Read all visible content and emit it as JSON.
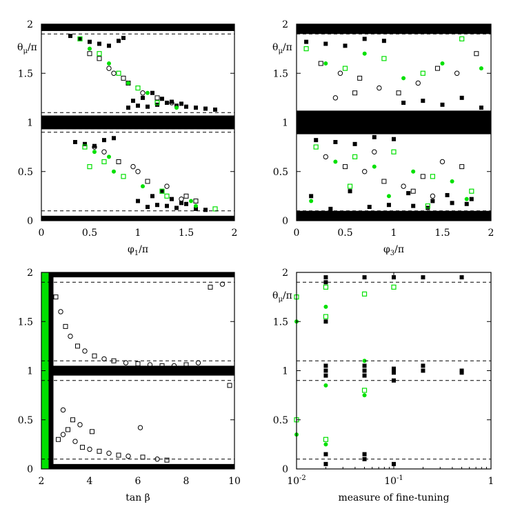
{
  "colors": {
    "black": "#000000",
    "green": "#00e000",
    "frame": "#000000"
  },
  "chart_data": [
    {
      "type": "scatter",
      "panel": "top-left",
      "ylabel": "θμ/π",
      "xlabel": "φ1/π",
      "xlim": [
        0,
        2
      ],
      "ylim": [
        0,
        2
      ],
      "xscale": "linear",
      "xticks": [
        0,
        0.5,
        1,
        1.5,
        2
      ],
      "xtick_labels": [
        "0",
        "0.5",
        "1",
        "1.5",
        "2"
      ],
      "yticks": [
        0,
        0.5,
        1,
        1.5,
        2
      ],
      "ytick_labels": [
        "0",
        "0.5",
        "1",
        "1.5",
        "2"
      ],
      "reference_lines_y": [
        0.1,
        0.9,
        1.1,
        1.9
      ],
      "bands": [
        {
          "x": [
            0,
            2
          ],
          "y": [
            1.93,
            2.0
          ],
          "color": "black"
        },
        {
          "x": [
            0,
            2
          ],
          "y": [
            0.93,
            1.07
          ],
          "color": "black"
        },
        {
          "x": [
            0,
            2
          ],
          "y": [
            0.0,
            0.05
          ],
          "color": "black"
        }
      ],
      "series": [
        {
          "marker": "filled-black",
          "x": [
            0.9,
            1.0,
            1.1,
            1.2,
            1.3,
            1.4,
            1.5,
            1.6,
            1.7,
            1.8,
            0.95,
            1.05,
            1.15,
            1.25,
            1.35,
            1.45,
            0.3,
            0.4,
            0.5,
            0.6,
            0.7,
            0.8,
            0.85,
            0.35,
            0.45,
            0.55,
            0.65,
            0.75,
            1.1,
            1.2,
            1.3,
            1.4,
            1.5,
            1.6,
            1.7,
            1.0,
            1.15,
            1.25,
            1.35,
            1.45
          ],
          "y": [
            1.15,
            1.17,
            1.16,
            1.18,
            1.2,
            1.17,
            1.16,
            1.15,
            1.14,
            1.13,
            1.22,
            1.25,
            1.3,
            1.24,
            1.21,
            1.19,
            1.88,
            1.85,
            1.82,
            1.8,
            1.78,
            1.83,
            1.86,
            0.8,
            0.78,
            0.76,
            0.82,
            0.84,
            0.14,
            0.16,
            0.15,
            0.13,
            0.17,
            0.12,
            0.11,
            0.2,
            0.25,
            0.3,
            0.22,
            0.18
          ]
        },
        {
          "marker": "open-black",
          "x": [
            0.6,
            0.75,
            0.9,
            1.05,
            1.2,
            1.35,
            0.5,
            0.7,
            0.85,
            1.0,
            1.1,
            1.3,
            1.5,
            0.65,
            0.8,
            0.95,
            1.25,
            1.45,
            1.6,
            0.55
          ],
          "y": [
            1.65,
            1.5,
            1.4,
            1.3,
            1.25,
            1.2,
            1.7,
            1.55,
            1.45,
            0.5,
            0.4,
            0.35,
            0.25,
            0.7,
            0.6,
            0.55,
            0.3,
            0.22,
            0.2,
            0.75
          ]
        },
        {
          "marker": "green",
          "x": [
            0.4,
            0.5,
            0.6,
            0.7,
            0.8,
            0.9,
            1.0,
            1.1,
            1.2,
            1.4,
            0.45,
            0.55,
            0.65,
            0.75,
            0.85,
            1.05,
            1.25,
            1.55,
            0.5,
            0.7,
            1.3,
            1.6,
            1.8
          ],
          "y": [
            1.85,
            1.75,
            1.7,
            1.6,
            1.5,
            1.4,
            1.35,
            1.3,
            1.2,
            1.15,
            0.75,
            0.7,
            0.6,
            0.5,
            0.45,
            0.35,
            0.3,
            0.2,
            0.55,
            0.65,
            0.25,
            0.15,
            0.12
          ]
        }
      ]
    },
    {
      "type": "scatter",
      "panel": "top-right",
      "ylabel": "θμ/π",
      "xlabel": "φ3/π",
      "xlim": [
        0,
        2
      ],
      "ylim": [
        0,
        2
      ],
      "xscale": "linear",
      "xticks": [
        0,
        0.5,
        1,
        1.5,
        2
      ],
      "xtick_labels": [
        "0",
        "0.5",
        "1",
        "1.5",
        "2"
      ],
      "yticks": [
        0,
        0.5,
        1,
        1.5,
        2
      ],
      "ytick_labels": [
        "0",
        "0.5",
        "1",
        "1.5",
        "2"
      ],
      "reference_lines_y": [
        0.1,
        0.9,
        1.1,
        1.9
      ],
      "bands": [
        {
          "x": [
            0,
            2
          ],
          "y": [
            1.9,
            2.0
          ],
          "color": "black"
        },
        {
          "x": [
            0,
            2
          ],
          "y": [
            0.88,
            1.12
          ],
          "color": "black"
        },
        {
          "x": [
            0,
            2
          ],
          "y": [
            0.0,
            0.1
          ],
          "color": "black"
        }
      ],
      "series": [
        {
          "marker": "filled-black",
          "x": [
            0.1,
            0.3,
            0.5,
            0.7,
            0.9,
            1.1,
            1.3,
            1.5,
            1.7,
            1.9,
            0.2,
            0.4,
            0.6,
            0.8,
            1.0,
            1.2,
            1.4,
            1.6,
            1.8,
            0.15,
            0.35,
            0.55,
            0.75,
            0.95,
            1.15,
            1.35,
            1.55,
            1.75
          ],
          "y": [
            1.82,
            1.8,
            1.78,
            1.85,
            1.83,
            1.2,
            1.22,
            1.18,
            1.25,
            1.15,
            0.82,
            0.8,
            0.78,
            0.85,
            0.83,
            0.15,
            0.2,
            0.18,
            0.22,
            0.25,
            0.12,
            0.3,
            0.14,
            0.16,
            0.28,
            0.13,
            0.26,
            0.17
          ]
        },
        {
          "marker": "open-black",
          "x": [
            0.25,
            0.45,
            0.65,
            0.85,
            1.05,
            1.25,
            1.45,
            1.65,
            1.85,
            0.3,
            0.5,
            0.7,
            0.9,
            1.1,
            1.3,
            1.5,
            1.7,
            0.4,
            0.6,
            0.8,
            1.2,
            1.4
          ],
          "y": [
            1.6,
            1.5,
            1.45,
            1.35,
            1.3,
            1.4,
            1.55,
            1.5,
            1.7,
            0.65,
            0.55,
            0.5,
            0.4,
            0.35,
            0.45,
            0.6,
            0.55,
            1.25,
            1.3,
            0.7,
            0.3,
            0.25
          ]
        },
        {
          "marker": "green",
          "x": [
            0.1,
            0.3,
            0.5,
            0.7,
            0.9,
            1.1,
            1.3,
            1.5,
            1.7,
            1.9,
            0.2,
            0.4,
            0.6,
            0.8,
            1.0,
            1.2,
            1.4,
            1.6,
            1.8,
            0.15,
            0.55,
            0.95,
            1.35,
            1.75
          ],
          "y": [
            1.75,
            1.6,
            1.55,
            1.7,
            1.65,
            1.45,
            1.5,
            1.6,
            1.85,
            1.55,
            0.75,
            0.6,
            0.65,
            0.55,
            0.7,
            0.5,
            0.45,
            0.4,
            0.3,
            0.2,
            0.35,
            0.25,
            0.15,
            0.22
          ]
        }
      ]
    },
    {
      "type": "scatter",
      "panel": "bottom-left",
      "ylabel": "",
      "xlabel": "tan β",
      "xlim": [
        2,
        10
      ],
      "ylim": [
        0,
        2
      ],
      "xscale": "linear",
      "xticks": [
        2,
        4,
        6,
        8,
        10
      ],
      "xtick_labels": [
        "2",
        "4",
        "6",
        "8",
        "10"
      ],
      "yticks": [
        0,
        0.5,
        1,
        1.5,
        2
      ],
      "ytick_labels": [
        "0",
        "0.5",
        "1",
        "1.5",
        "2"
      ],
      "reference_lines_y": [
        0.1,
        0.9,
        1.1,
        1.9
      ],
      "bands": [
        {
          "x": [
            2,
            10
          ],
          "y": [
            1.95,
            2.0
          ],
          "color": "black"
        },
        {
          "x": [
            2,
            10
          ],
          "y": [
            0.95,
            1.05
          ],
          "color": "black"
        },
        {
          "x": [
            2,
            10
          ],
          "y": [
            0.0,
            0.05
          ],
          "color": "black"
        },
        {
          "x": [
            2.0,
            2.3
          ],
          "y": [
            0.0,
            2.0
          ],
          "color": "green"
        },
        {
          "x": [
            2.3,
            2.5
          ],
          "y": [
            0.0,
            2.0
          ],
          "color": "black"
        }
      ],
      "series": [
        {
          "marker": "open-black",
          "x": [
            2.6,
            2.8,
            3.0,
            3.2,
            3.5,
            3.8,
            4.2,
            4.6,
            5.0,
            5.5,
            6.0,
            6.5,
            7.0,
            7.5,
            8.0,
            8.5,
            9.0,
            9.5,
            2.7,
            2.9,
            3.1,
            3.4,
            3.7,
            4.0,
            4.4,
            4.8,
            5.2,
            5.6,
            6.2,
            6.8,
            7.2,
            2.9,
            3.3,
            3.6,
            4.1,
            6.1,
            9.8
          ],
          "y": [
            1.75,
            1.6,
            1.45,
            1.35,
            1.25,
            1.2,
            1.15,
            1.12,
            1.1,
            1.08,
            1.07,
            1.06,
            1.05,
            1.05,
            1.06,
            1.08,
            1.85,
            1.88,
            0.3,
            0.35,
            0.4,
            0.28,
            0.22,
            0.2,
            0.18,
            0.16,
            0.14,
            0.13,
            0.12,
            0.1,
            0.09,
            0.6,
            0.5,
            0.45,
            0.38,
            0.42,
            0.85
          ]
        }
      ]
    },
    {
      "type": "scatter",
      "panel": "bottom-right",
      "ylabel": "θμ/π",
      "xlabel": "measure of fine-tuning",
      "xlim": [
        0.01,
        1
      ],
      "ylim": [
        0,
        2
      ],
      "xscale": "log",
      "xticks": [
        0.01,
        0.1,
        1
      ],
      "xtick_labels": [
        "10-2",
        "10-1",
        "1"
      ],
      "yticks": [
        0,
        0.5,
        1,
        1.5,
        2
      ],
      "ytick_labels": [
        "0",
        "0.5",
        "1",
        "1.5",
        "2"
      ],
      "reference_lines_y": [
        0.1,
        0.9,
        1.1,
        1.9
      ],
      "series": [
        {
          "marker": "filled-black",
          "x": [
            0.02,
            0.02,
            0.02,
            0.02,
            0.02,
            0.02,
            0.02,
            0.05,
            0.05,
            0.05,
            0.05,
            0.05,
            0.1,
            0.1,
            0.1,
            0.1,
            0.2,
            0.2,
            0.2,
            0.5,
            0.5,
            0.5,
            0.02,
            0.05,
            0.1
          ],
          "y": [
            1.95,
            1.9,
            1.05,
            1.0,
            0.95,
            0.15,
            0.05,
            1.95,
            1.05,
            1.0,
            0.95,
            0.1,
            1.95,
            1.02,
            0.98,
            0.05,
            1.95,
            1.0,
            1.05,
            1.0,
            0.98,
            1.95,
            1.5,
            0.15,
            0.9
          ]
        },
        {
          "marker": "green",
          "x": [
            0.01,
            0.01,
            0.01,
            0.01,
            0.02,
            0.02,
            0.02,
            0.02,
            0.02,
            0.02,
            0.05,
            0.05,
            0.05,
            0.05,
            0.1
          ],
          "y": [
            1.75,
            1.5,
            0.5,
            0.35,
            1.85,
            1.65,
            1.55,
            0.85,
            0.3,
            0.25,
            1.78,
            1.1,
            0.8,
            0.75,
            1.85
          ]
        }
      ]
    }
  ]
}
